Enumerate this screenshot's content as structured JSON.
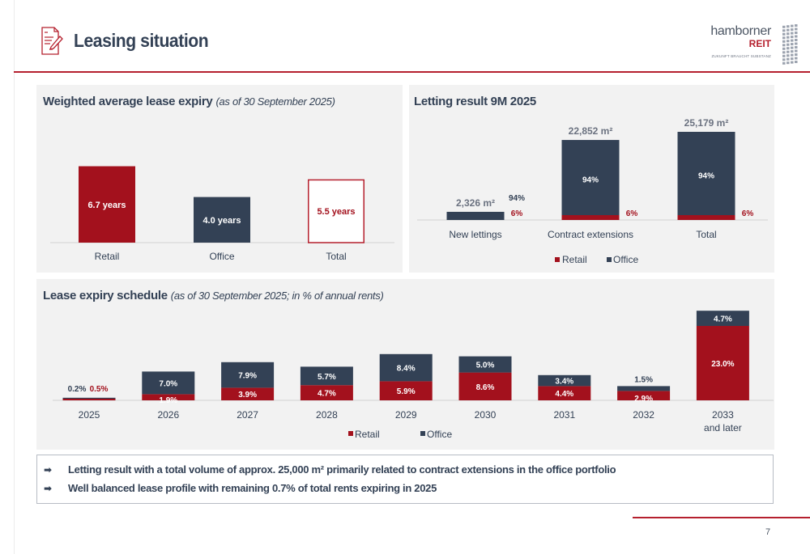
{
  "header": {
    "title": "Leasing situation",
    "title_icon": "document-edit-icon",
    "logo": {
      "word": "hamborner",
      "reit": "REIT",
      "tagline": "ZUKUNFT BRAUCHT SUBSTANZ"
    }
  },
  "colors": {
    "retail": "#a3111d",
    "office": "#334155",
    "accent": "#b5202e",
    "panel_bg": "#f2f2f2"
  },
  "panels": {
    "wale": {
      "title": "Weighted average lease expiry",
      "subtitle": "(as of 30 September 2025)"
    },
    "letting": {
      "title": "Letting result 9M 2025"
    },
    "expiry": {
      "title": "Lease expiry schedule",
      "subtitle": "(as of 30 September 2025; in % of annual rents)"
    }
  },
  "chart_data": [
    {
      "id": "wale",
      "type": "bar",
      "title": "Weighted average lease expiry (as of 30 September 2025)",
      "categories": [
        "Retail",
        "Office",
        "Total"
      ],
      "values": [
        6.7,
        4.0,
        5.5
      ],
      "labels": [
        "6.7 years",
        "4.0 years",
        "5.5 years"
      ],
      "styles": [
        "retail",
        "office",
        "outline"
      ],
      "unit": "years",
      "ylim": [
        0,
        8
      ],
      "grid": false
    },
    {
      "id": "letting",
      "type": "bar",
      "stacked": true,
      "title": "Letting result 9M 2025",
      "categories": [
        "New lettings",
        "Contract extensions",
        "Total"
      ],
      "totals": [
        2326,
        22852,
        25179
      ],
      "total_labels": [
        "2,326 m²",
        "22,852 m²",
        "25,179 m²"
      ],
      "series": [
        {
          "name": "Retail",
          "values_pct": [
            6,
            6,
            6
          ],
          "labels": [
            "6%",
            "6%",
            "6%"
          ]
        },
        {
          "name": "Office",
          "values_pct": [
            94,
            94,
            94
          ],
          "labels": [
            "94%",
            "94%",
            "94%"
          ]
        }
      ],
      "unit": "m²",
      "ylim": [
        0,
        27000
      ],
      "legend": {
        "position": "bottom",
        "entries": [
          "Retail",
          "Office"
        ]
      },
      "grid": false
    },
    {
      "id": "expiry",
      "type": "bar",
      "stacked": true,
      "title": "Lease expiry schedule (as of 30 September 2025; in % of annual rents)",
      "categories": [
        "2025",
        "2026",
        "2027",
        "2028",
        "2029",
        "2030",
        "2031",
        "2032",
        "2033 and later"
      ],
      "category_lines": [
        [
          "2025"
        ],
        [
          "2026"
        ],
        [
          "2027"
        ],
        [
          "2028"
        ],
        [
          "2029"
        ],
        [
          "2030"
        ],
        [
          "2031"
        ],
        [
          "2032"
        ],
        [
          "2033",
          "and later"
        ]
      ],
      "series": [
        {
          "name": "Retail",
          "values": [
            0.5,
            1.9,
            3.9,
            4.7,
            5.9,
            8.6,
            4.4,
            2.9,
            23.0
          ],
          "labels": [
            "0.5%",
            "1.9%",
            "3.9%",
            "4.7%",
            "5.9%",
            "8.6%",
            "4.4%",
            "2.9%",
            "23.0%"
          ]
        },
        {
          "name": "Office",
          "values": [
            0.2,
            7.0,
            7.9,
            5.7,
            8.4,
            5.0,
            3.4,
            1.5,
            4.7
          ],
          "labels": [
            "0.2%",
            "7.0%",
            "7.9%",
            "5.7%",
            "8.4%",
            "5.0%",
            "3.4%",
            "1.5%",
            "4.7%"
          ]
        }
      ],
      "unit": "%",
      "ylim": [
        0,
        30
      ],
      "legend": {
        "position": "bottom",
        "entries": [
          "Retail",
          "Office"
        ]
      },
      "grid": false
    }
  ],
  "notes": [
    "Letting result with a total volume of approx. 25,000 m² primarily related to contract extensions in the office portfolio",
    "Well balanced lease profile with remaining 0.7% of total rents expiring in 2025"
  ],
  "note_icon": "arrow-right-icon",
  "page_number": "7"
}
